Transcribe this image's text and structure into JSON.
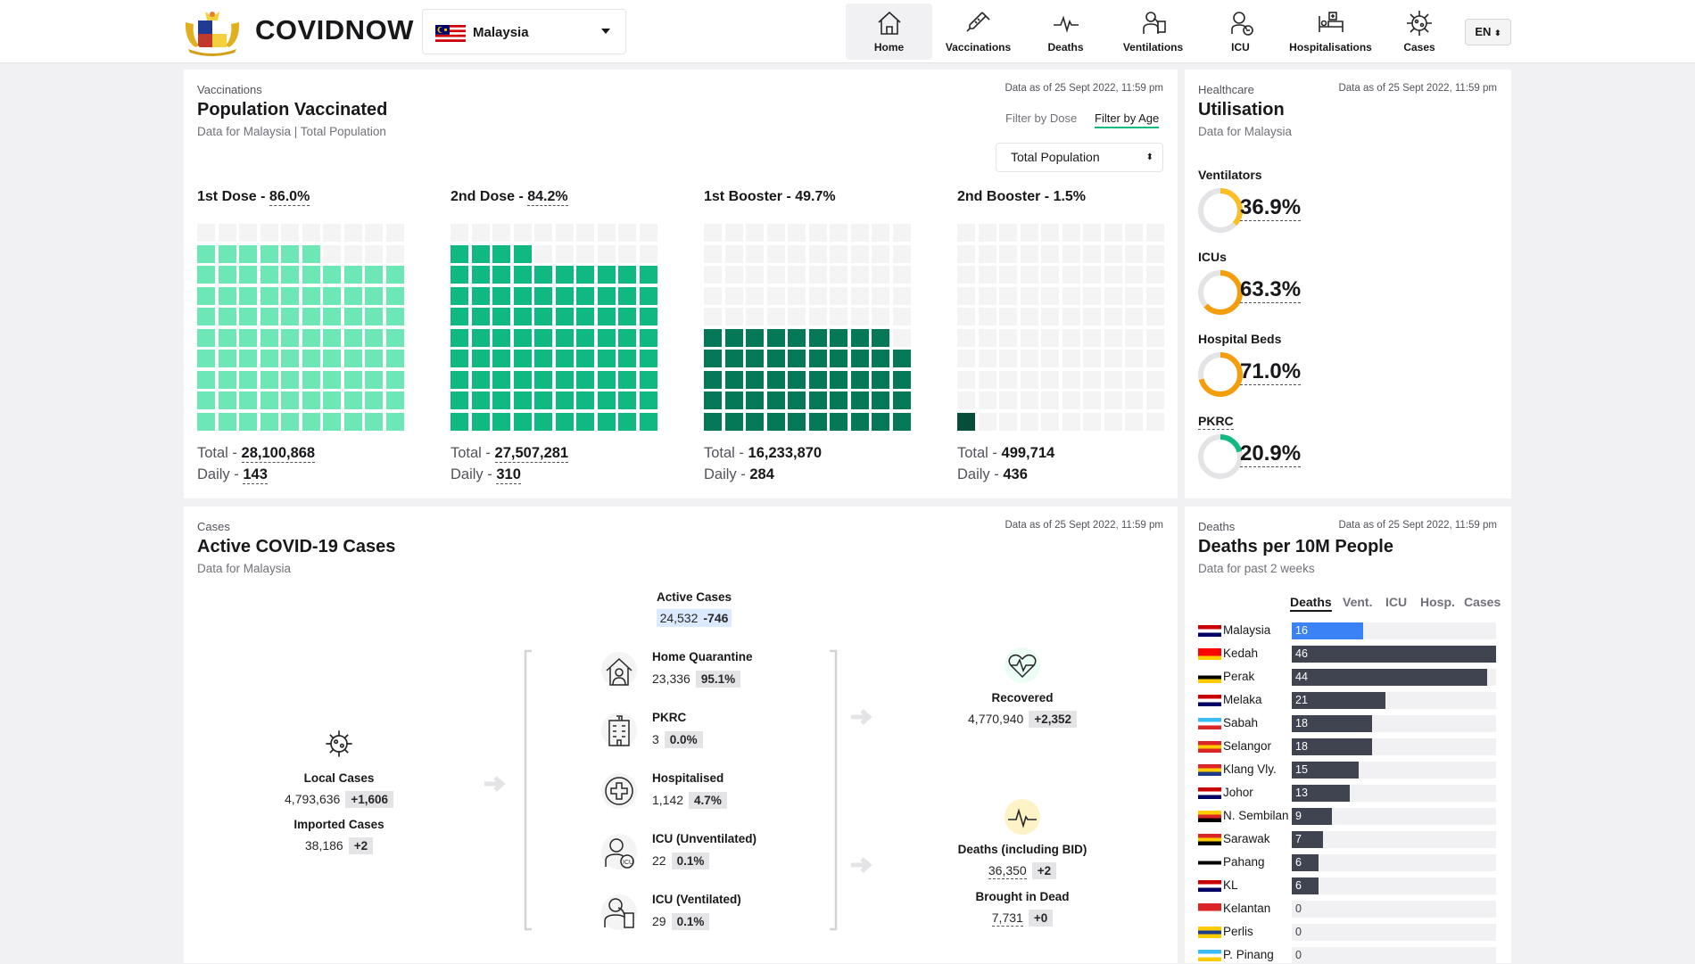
{
  "header": {
    "brand": "COVIDNOW",
    "country": "Malaysia",
    "lang": "EN",
    "nav": [
      {
        "label": "Home"
      },
      {
        "label": "Vaccinations"
      },
      {
        "label": "Deaths"
      },
      {
        "label": "Ventilations"
      },
      {
        "label": "ICU"
      },
      {
        "label": "Hospitalisations"
      },
      {
        "label": "Cases"
      }
    ]
  },
  "vaccination": {
    "category": "Vaccinations",
    "title": "Population Vaccinated",
    "subtitle": "Data for Malaysia | Total Population",
    "as_of": "Data as of 25 Sept 2022, 11:59 pm",
    "filter_dose": "Filter by Dose",
    "filter_age": "Filter by Age",
    "population_select": "Total Population",
    "doses": [
      {
        "label": "1st Dose - ",
        "pct": "86.0%",
        "total_label": "Total - ",
        "total": "28,100,868",
        "daily_label": "Daily - ",
        "daily": "143",
        "fill": 86,
        "color": "#6ee7b7"
      },
      {
        "label": "2nd Dose - ",
        "pct": "84.2%",
        "total_label": "Total - ",
        "total": "27,507,281",
        "daily_label": "Daily - ",
        "daily": "310",
        "fill": 84,
        "color": "#10b981"
      },
      {
        "label": "1st Booster - ",
        "pct": "49.7%",
        "total_label": "Total - ",
        "total": "16,233,870",
        "daily_label": "Daily - ",
        "daily": "284",
        "fill": 49,
        "color": "#047857"
      },
      {
        "label": "2nd Booster - ",
        "pct": "1.5%",
        "total_label": "Total - ",
        "total": "499,714",
        "daily_label": "Daily - ",
        "daily": "436",
        "fill": 1,
        "color": "#064e3b"
      }
    ]
  },
  "utilisation": {
    "category": "Healthcare",
    "title": "Utilisation",
    "subtitle": "Data for Malaysia",
    "as_of": "Data as of 25 Sept 2022, 11:59 pm",
    "items": [
      {
        "label": "Ventilators",
        "pct": "36.9%",
        "value": 36.9,
        "color": "#fbbf24"
      },
      {
        "label": "ICUs",
        "pct": "63.3%",
        "value": 63.3,
        "color": "#f59e0b"
      },
      {
        "label": "Hospital Beds",
        "pct": "71.0%",
        "value": 71.0,
        "color": "#f59e0b"
      },
      {
        "label": "PKRC",
        "pct": "20.9%",
        "value": 20.9,
        "color": "#10b981"
      }
    ]
  },
  "cases": {
    "category": "Cases",
    "title": "Active COVID-19 Cases",
    "subtitle": "Data for Malaysia",
    "as_of": "Data as of 25 Sept 2022, 11:59 pm",
    "active_label": "Active Cases",
    "active": "24,532",
    "active_delta": "-746",
    "local_label": "Local Cases",
    "local": "4,793,636",
    "local_delta": "+1,606",
    "imported_label": "Imported Cases",
    "imported": "38,186",
    "imported_delta": "+2",
    "home_label": "Home Quarantine",
    "home": "23,336",
    "home_pct": "95.1%",
    "pkrc_label": "PKRC",
    "pkrc": "3",
    "pkrc_pct": "0.0%",
    "hosp_label": "Hospitalised",
    "hosp": "1,142",
    "hosp_pct": "4.7%",
    "icu_u_label": "ICU (Unventilated)",
    "icu_u": "22",
    "icu_u_pct": "0.1%",
    "icu_v_label": "ICU (Ventilated)",
    "icu_v": "29",
    "icu_v_pct": "0.1%",
    "recovered_label": "Recovered",
    "recovered": "4,770,940",
    "recovered_delta": "+2,352",
    "deaths_label": "Deaths (including BID)",
    "deaths": "36,350",
    "deaths_delta": "+2",
    "bid_label": "Brought in Dead",
    "bid": "7,731",
    "bid_delta": "+0"
  },
  "deaths10m": {
    "category": "Deaths",
    "title": "Deaths per 10M People",
    "subtitle": "Data for past 2 weeks",
    "as_of": "Data as of 25 Sept 2022, 11:59 pm",
    "tabs": [
      "Deaths",
      "Vent.",
      "ICU",
      "Hosp.",
      "Cases"
    ],
    "max": 46,
    "rows": [
      {
        "state": "Malaysia",
        "value": 16
      },
      {
        "state": "Kedah",
        "value": 46
      },
      {
        "state": "Perak",
        "value": 44
      },
      {
        "state": "Melaka",
        "value": 21
      },
      {
        "state": "Sabah",
        "value": 18
      },
      {
        "state": "Selangor",
        "value": 18
      },
      {
        "state": "Klang Vly.",
        "value": 15
      },
      {
        "state": "Johor",
        "value": 13
      },
      {
        "state": "N. Sembilan",
        "value": 9
      },
      {
        "state": "Sarawak",
        "value": 7
      },
      {
        "state": "Pahang",
        "value": 6
      },
      {
        "state": "KL",
        "value": 6
      },
      {
        "state": "Kelantan",
        "value": 0
      },
      {
        "state": "Perlis",
        "value": 0
      },
      {
        "state": "P. Pinang",
        "value": 0
      }
    ]
  }
}
